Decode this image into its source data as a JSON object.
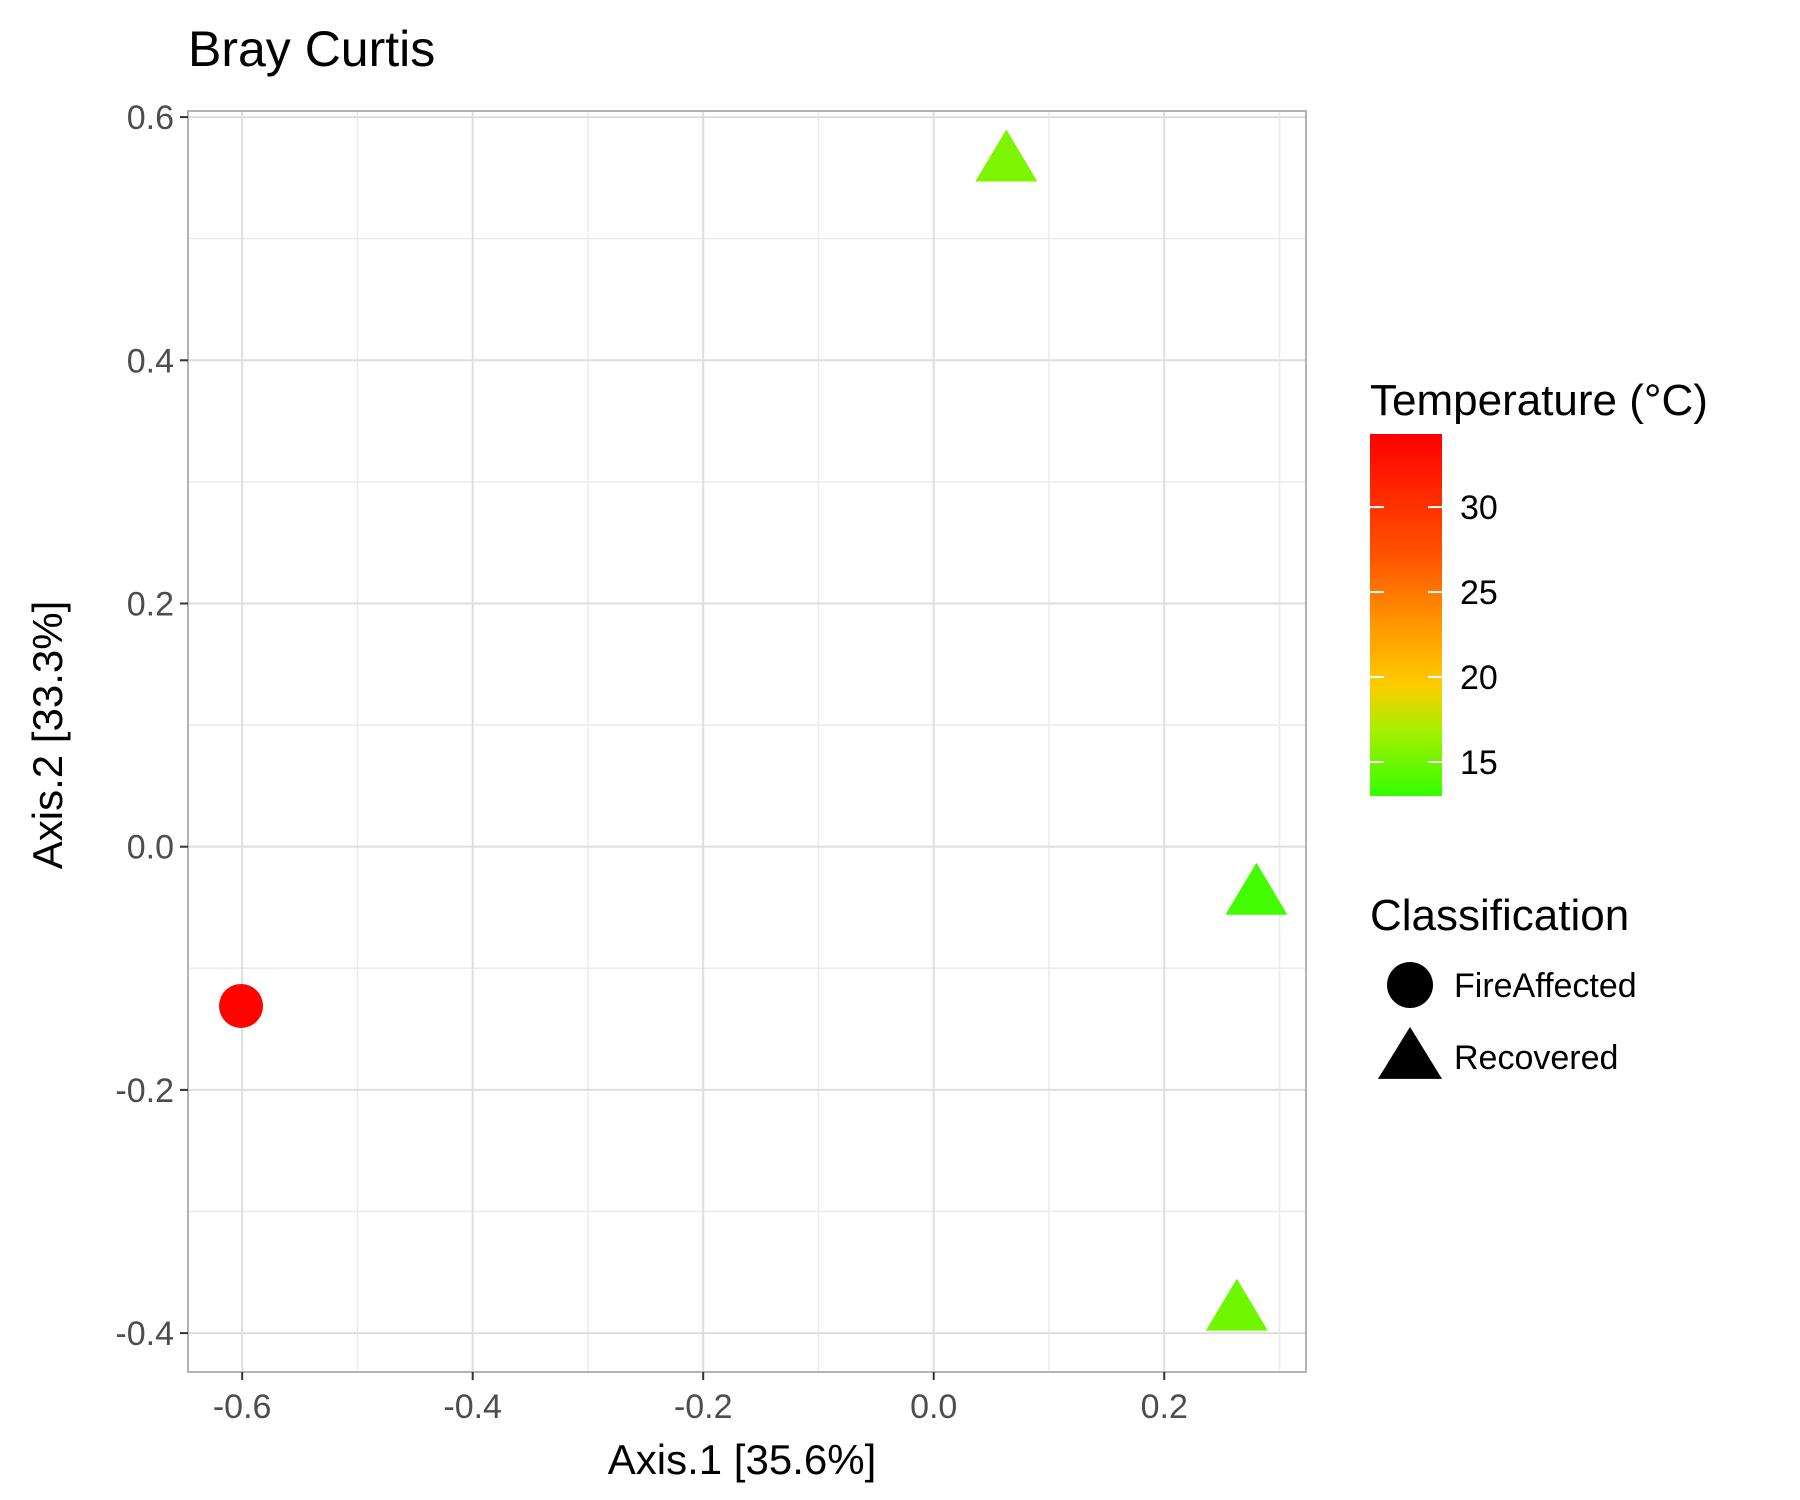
{
  "chart_data": {
    "type": "scatter",
    "title": "Bray Curtis",
    "xlabel": "Axis.1   [35.6%]",
    "ylabel": "Axis.2   [33.3%]",
    "xlim": [
      -0.647,
      0.323
    ],
    "ylim": [
      -0.432,
      0.605
    ],
    "xticks": [
      -0.6,
      -0.4,
      -0.2,
      0.0,
      0.2
    ],
    "xtick_labels": [
      "-0.6",
      "-0.4",
      "-0.2",
      "0.0",
      "0.2"
    ],
    "yticks": [
      -0.4,
      -0.2,
      0.0,
      0.2,
      0.4,
      0.6
    ],
    "ytick_labels": [
      "-0.4",
      "-0.2",
      "0.0",
      "0.2",
      "0.4",
      "0.6"
    ],
    "grid": true,
    "points": [
      {
        "x": -0.601,
        "y": -0.131,
        "classification": "FireAffected",
        "temperature": 34.0
      },
      {
        "x": 0.063,
        "y": 0.565,
        "classification": "Recovered",
        "temperature": 15.5
      },
      {
        "x": 0.28,
        "y": -0.038,
        "classification": "Recovered",
        "temperature": 13.5
      },
      {
        "x": 0.263,
        "y": -0.38,
        "classification": "Recovered",
        "temperature": 15.0
      }
    ],
    "legend": {
      "placement": "right",
      "color": {
        "title": "Temperature (°C)",
        "min": 13,
        "max": 34.3,
        "breaks": [
          15,
          20,
          25,
          30
        ],
        "break_labels": [
          "15",
          "20",
          "25",
          "30"
        ],
        "gradient": [
          {
            "value": 13,
            "color": "#33ff00"
          },
          {
            "value": 17,
            "color": "#aaee00"
          },
          {
            "value": 19.5,
            "color": "#ffcc00"
          },
          {
            "value": 23,
            "color": "#ff9900"
          },
          {
            "value": 27,
            "color": "#ff5500"
          },
          {
            "value": 34.3,
            "color": "#ff0000"
          }
        ]
      },
      "shape": {
        "title": "Classification",
        "items": [
          {
            "label": "FireAffected",
            "shape": "circle"
          },
          {
            "label": "Recovered",
            "shape": "triangle"
          }
        ]
      }
    }
  }
}
